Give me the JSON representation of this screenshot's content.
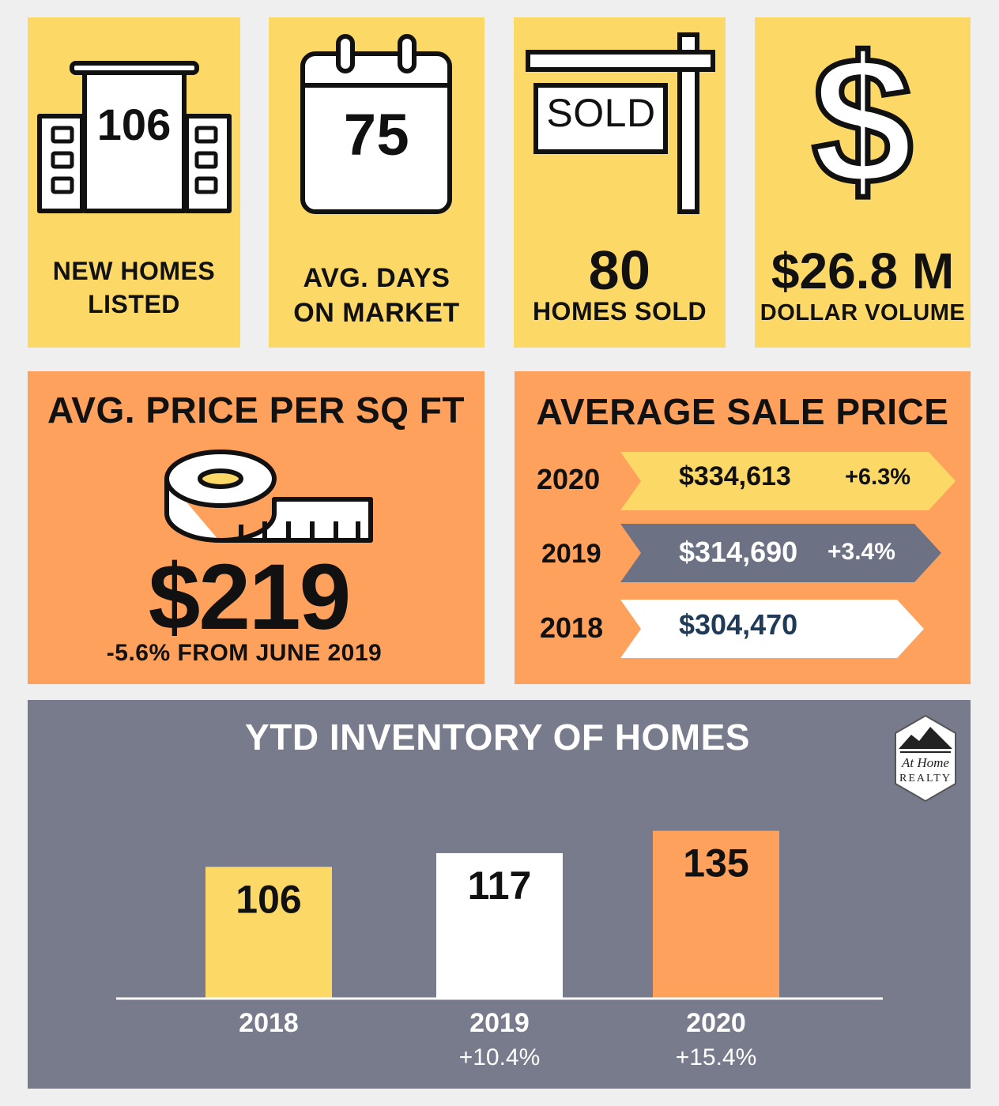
{
  "tiles": {
    "new_listed": {
      "value": "106",
      "label_line1": "NEW HOMES",
      "label_line2": "LISTED",
      "icon": "building-icon"
    },
    "days_market": {
      "value": "75",
      "label_line1": "AVG. DAYS",
      "label_line2": "ON MARKET",
      "icon": "calendar-icon"
    },
    "homes_sold": {
      "sign_text": "SOLD",
      "value": "80",
      "label": "HOMES SOLD",
      "icon": "sold-sign-icon"
    },
    "dollar_volume": {
      "value": "$26.8 M",
      "label": "DOLLAR VOLUME",
      "icon": "dollar-icon"
    }
  },
  "price_sqft": {
    "title": "AVG. PRICE PER SQ FT",
    "value": "$219",
    "change": "-5.6% FROM JUNE 2019",
    "icon": "tape-measure-icon"
  },
  "avg_sale": {
    "title": "AVERAGE SALE PRICE",
    "rows": [
      {
        "year": "2020",
        "price": "$334,613",
        "change": "+6.3%"
      },
      {
        "year": "2019",
        "price": "$314,690",
        "change": "+3.4%"
      },
      {
        "year": "2018",
        "price": "$304,470",
        "change": ""
      }
    ]
  },
  "logo": {
    "line1": "At Home",
    "line2": "REALTY"
  },
  "chart_data": {
    "type": "bar",
    "title": "YTD INVENTORY OF HOMES",
    "categories": [
      "2018",
      "2019",
      "2020"
    ],
    "values": [
      106,
      117,
      135
    ],
    "changes": [
      "",
      "+10.4%",
      "+15.4%"
    ],
    "bar_colors": [
      "#fcd966",
      "#ffffff",
      "#fea15c"
    ],
    "ylim": [
      0,
      150
    ]
  },
  "colors": {
    "yellow": "#fcd966",
    "orange": "#fea15c",
    "grey": "#777b8b",
    "arrow_grey": "#6c7184",
    "navy": "#1f3b57"
  }
}
